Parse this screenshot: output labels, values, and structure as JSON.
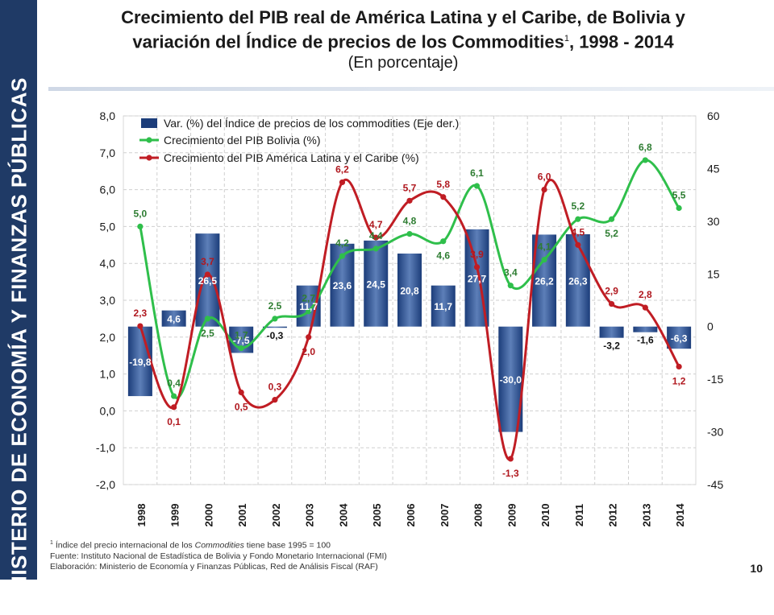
{
  "sidebar": {
    "text": "MINISTERIO DE ECONOMÍA Y FINANZAS PÚBLICAS"
  },
  "header": {
    "title_line1": "Crecimiento del PIB real de América Latina y el Caribe, de Bolivia y",
    "title_line2_main": "variación del Índice de precios de los Commodities",
    "title_line2_sup": "1",
    "title_line2_tail": ", 1998 - 2014",
    "subtitle": "(En porcentaje)"
  },
  "colors": {
    "bar": "#1c3d7a",
    "bar_light": "#5d7fb8",
    "bolivia": "#2fbf4b",
    "latam": "#c01d24",
    "bolivia_label": "#2e7d32",
    "latam_label": "#b0181f",
    "grid": "#cfcfcf"
  },
  "chart_data": {
    "type": "bar",
    "title": "Crecimiento del PIB real de América Latina y el Caribe, de Bolivia y variación del Índice de precios de los Commodities, 1998 - 2014",
    "categories": [
      "1998",
      "1999",
      "2000",
      "2001",
      "2002",
      "2003",
      "2004",
      "2005",
      "2006",
      "2007",
      "2008",
      "2009",
      "2010",
      "2011",
      "2012",
      "2013",
      "2014"
    ],
    "series": [
      {
        "name": "Var. (%) del Índice de precios de los commodities (Eje der.)",
        "type": "bar",
        "axis": "right",
        "values": [
          -19.8,
          4.6,
          26.5,
          -7.5,
          -0.3,
          11.7,
          23.6,
          24.5,
          20.8,
          11.7,
          27.7,
          -30.0,
          26.2,
          26.3,
          -3.2,
          -1.6,
          -6.3
        ],
        "labels": [
          "-19,8",
          "4,6",
          "26,5",
          "-7,5",
          "-0,3",
          "11,7",
          "23,6",
          "24,5",
          "20,8",
          "11,7",
          "27,7",
          "-30,0",
          "26,2",
          "26,3",
          "-3,2",
          "-1,6",
          "-6,3"
        ]
      },
      {
        "name": "Crecimiento del PIB Bolivia (%)",
        "type": "line",
        "axis": "left",
        "values": [
          5.0,
          0.4,
          2.5,
          1.7,
          2.5,
          2.7,
          4.2,
          4.4,
          4.8,
          4.6,
          6.1,
          3.4,
          4.1,
          5.2,
          5.2,
          6.8,
          5.5
        ],
        "labels": [
          "5,0",
          "0,4",
          "2,5",
          "1,7",
          "2,5",
          "2,7",
          "4,2",
          "4,4",
          "4,8",
          "4,6",
          "6,1",
          "3,4",
          "4,1",
          "5,2",
          "5,2",
          "6,8",
          "5,5"
        ]
      },
      {
        "name": "Crecimiento del PIB América Latina y el Caribe (%)",
        "type": "line",
        "axis": "left",
        "values": [
          2.3,
          0.1,
          3.7,
          0.5,
          0.3,
          2.0,
          6.2,
          4.7,
          5.7,
          5.8,
          3.9,
          -1.3,
          6.0,
          4.5,
          2.9,
          2.8,
          1.2
        ],
        "labels": [
          "2,3",
          "0,1",
          "3,7",
          "0,5",
          "0,3",
          "2,0",
          "6,2",
          "4,7",
          "5,7",
          "5,8",
          "3,9",
          "-1,3",
          "6,0",
          "4,5",
          "2,9",
          "2,8",
          "1,2"
        ]
      }
    ],
    "y_left": {
      "lim": [
        -2,
        8
      ],
      "ticks": [
        "-2,0",
        "-1,0",
        "0,0",
        "1,0",
        "2,0",
        "3,0",
        "4,0",
        "5,0",
        "6,0",
        "7,0",
        "8,0"
      ]
    },
    "y_right": {
      "lim": [
        -45,
        60
      ],
      "ticks": [
        "-45",
        "-30",
        "-15",
        "0",
        "15",
        "30",
        "45",
        "60"
      ]
    },
    "legend_position": "top-left"
  },
  "footnotes": {
    "note_sup": "1",
    "note_pre": " Índice del precio internacional de los ",
    "note_em": "Commodities",
    "note_post": " tiene base 1995 = 100",
    "source": "Fuente: Instituto Nacional de Estadística de Bolivia y Fondo Monetario Internacional (FMI)",
    "elaboration": "Elaboración: Ministerio de Economía y Finanzas Públicas, Red de Análisis Fiscal (RAF)"
  },
  "page_number": "10"
}
